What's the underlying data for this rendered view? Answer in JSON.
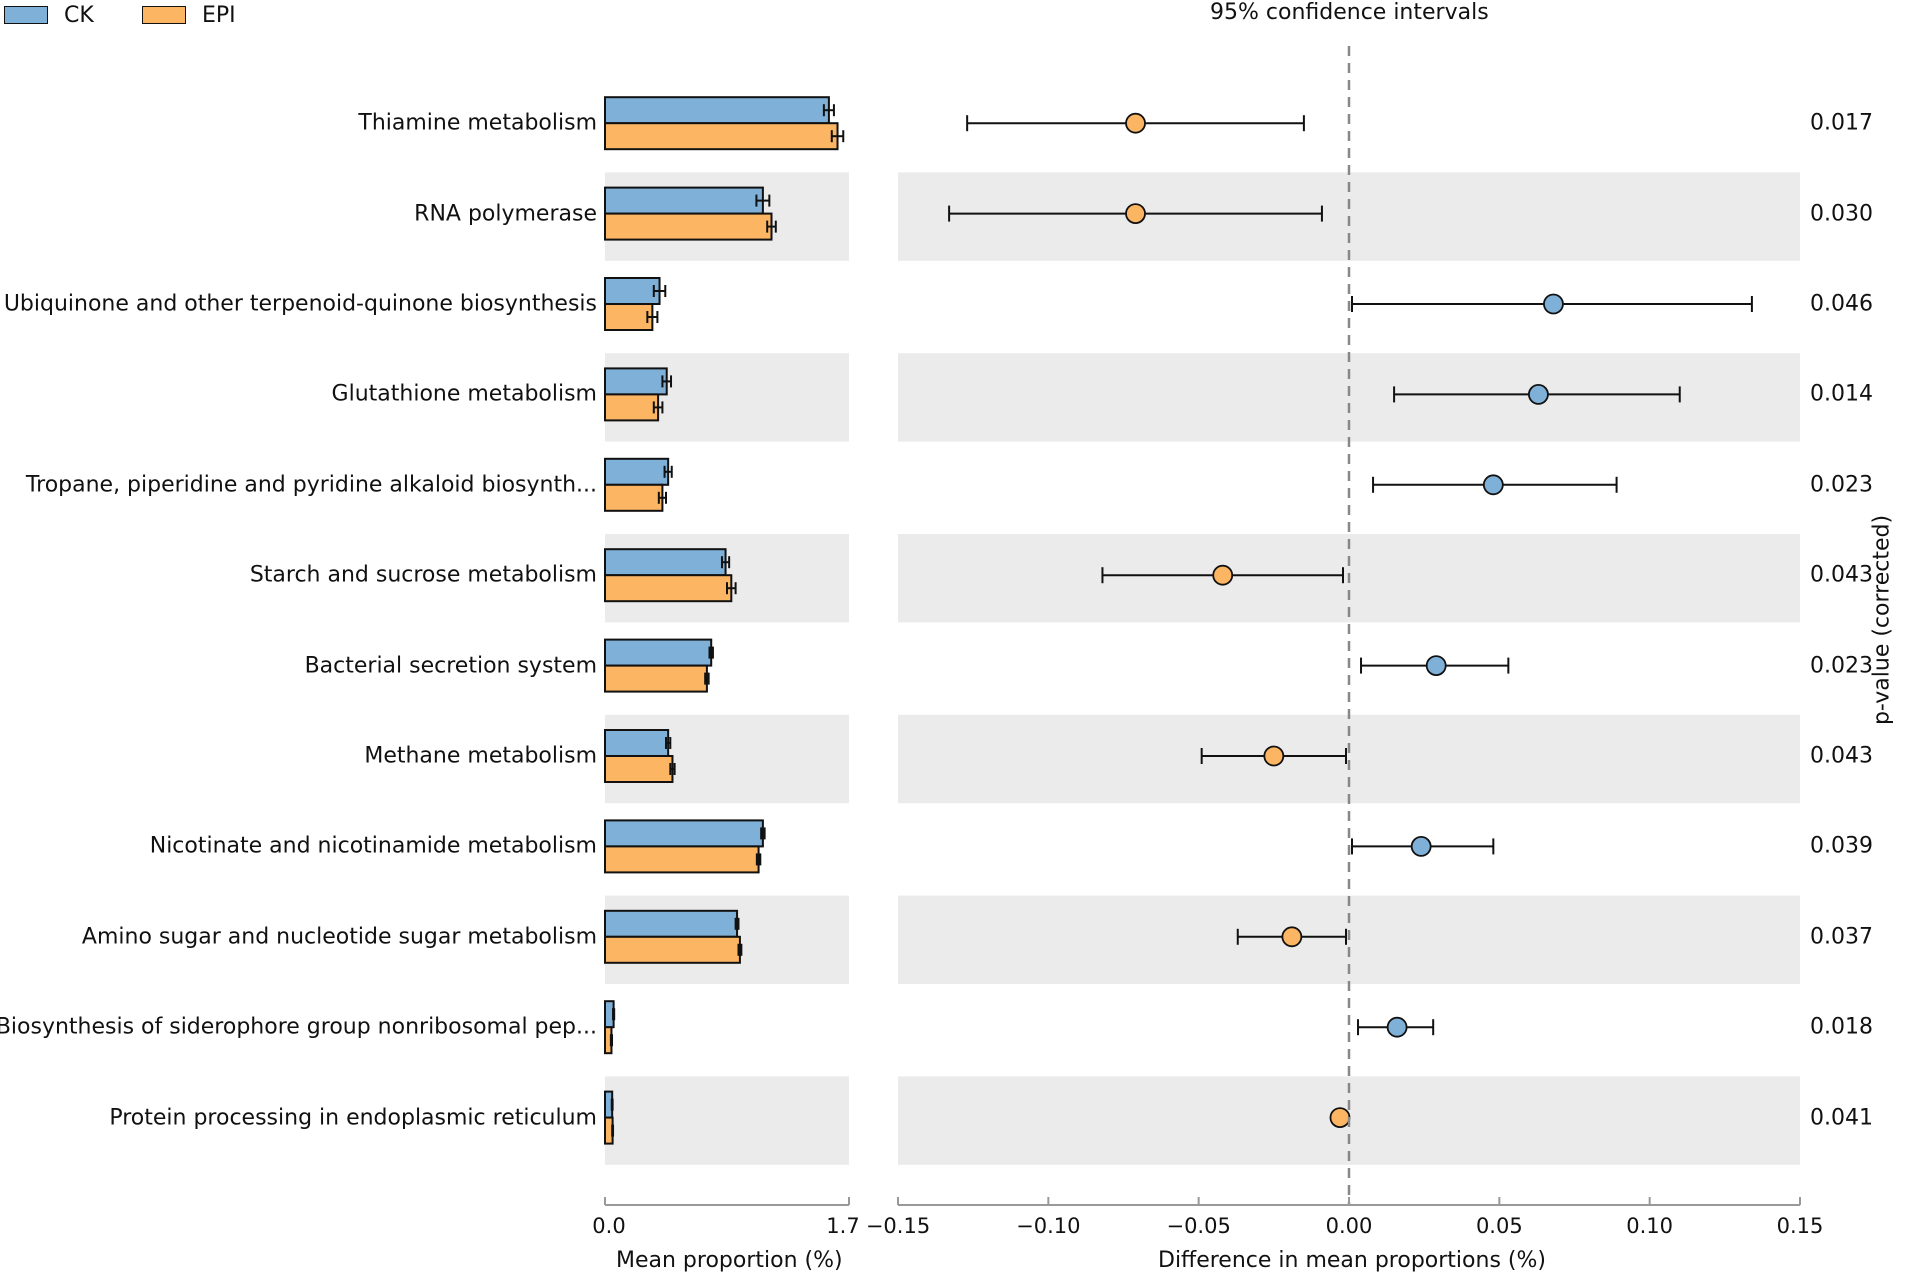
{
  "chart_data": {
    "type": "extended-error-bar",
    "title": "95% confidence intervals",
    "legend": [
      {
        "name": "CK",
        "color": "#7fb0d8"
      },
      {
        "name": "EPI",
        "color": "#fcb563"
      }
    ],
    "left_axis": {
      "label": "Mean proportion (%)",
      "xlim": [
        0.0,
        1.7
      ],
      "ticks": [
        "0.0",
        "1.7"
      ]
    },
    "right_axis": {
      "label": "Difference in mean proportions (%)",
      "xlim": [
        -0.15,
        0.15
      ],
      "ticks": [
        "−0.15",
        "−0.10",
        "−0.05",
        "0.00",
        "0.05",
        "0.10",
        "0.15"
      ]
    },
    "pvalue_label": "p-value (corrected)",
    "categories": [
      {
        "name": "Thiamine metabolism",
        "ck": 1.56,
        "ck_err": 0.035,
        "epi": 1.62,
        "epi_err": 0.04,
        "diff": -0.071,
        "ci": [
          -0.127,
          -0.015
        ],
        "pvalue": "0.017",
        "winner": "EPI"
      },
      {
        "name": "RNA polymerase",
        "ck": 1.1,
        "ck_err": 0.045,
        "epi": 1.16,
        "epi_err": 0.03,
        "diff": -0.071,
        "ci": [
          -0.133,
          -0.009
        ],
        "pvalue": "0.030",
        "winner": "EPI"
      },
      {
        "name": "Ubiquinone and other terpenoid-quinone biosynthesis",
        "ck": 0.38,
        "ck_err": 0.04,
        "epi": 0.33,
        "epi_err": 0.035,
        "diff": 0.068,
        "ci": [
          0.001,
          0.134
        ],
        "pvalue": "0.046",
        "winner": "CK"
      },
      {
        "name": "Glutathione metabolism",
        "ck": 0.43,
        "ck_err": 0.03,
        "epi": 0.37,
        "epi_err": 0.03,
        "diff": 0.063,
        "ci": [
          0.015,
          0.11
        ],
        "pvalue": "0.014",
        "winner": "CK"
      },
      {
        "name": "Tropane, piperidine and pyridine alkaloid biosynth...",
        "ck": 0.44,
        "ck_err": 0.025,
        "epi": 0.4,
        "epi_err": 0.025,
        "diff": 0.048,
        "ci": [
          0.008,
          0.089
        ],
        "pvalue": "0.023",
        "winner": "CK"
      },
      {
        "name": "Starch and sucrose metabolism",
        "ck": 0.84,
        "ck_err": 0.025,
        "epi": 0.88,
        "epi_err": 0.03,
        "diff": -0.042,
        "ci": [
          -0.082,
          -0.002
        ],
        "pvalue": "0.043",
        "winner": "EPI"
      },
      {
        "name": "Bacterial secretion system",
        "ck": 0.74,
        "ck_err": 0.012,
        "epi": 0.71,
        "epi_err": 0.012,
        "diff": 0.029,
        "ci": [
          0.004,
          0.053
        ],
        "pvalue": "0.023",
        "winner": "CK"
      },
      {
        "name": "Methane metabolism",
        "ck": 0.44,
        "ck_err": 0.015,
        "epi": 0.47,
        "epi_err": 0.015,
        "diff": -0.025,
        "ci": [
          -0.049,
          -0.001
        ],
        "pvalue": "0.043",
        "winner": "EPI"
      },
      {
        "name": "Nicotinate and nicotinamide metabolism",
        "ck": 1.1,
        "ck_err": 0.012,
        "epi": 1.07,
        "epi_err": 0.012,
        "diff": 0.024,
        "ci": [
          0.001,
          0.048
        ],
        "pvalue": "0.039",
        "winner": "CK"
      },
      {
        "name": "Amino sugar and nucleotide sugar metabolism",
        "ck": 0.92,
        "ck_err": 0.01,
        "epi": 0.94,
        "epi_err": 0.01,
        "diff": -0.019,
        "ci": [
          -0.037,
          -0.001
        ],
        "pvalue": "0.037",
        "winner": "EPI"
      },
      {
        "name": "Biosynthesis of siderophore group nonribosomal pep...",
        "ck": 0.06,
        "ck_err": 0.004,
        "epi": 0.045,
        "epi_err": 0.004,
        "diff": 0.016,
        "ci": [
          0.003,
          0.028
        ],
        "pvalue": "0.018",
        "winner": "CK"
      },
      {
        "name": "Protein processing in endoplasmic reticulum",
        "ck": 0.05,
        "ck_err": 0.003,
        "epi": 0.053,
        "epi_err": 0.003,
        "diff": -0.003,
        "ci": [
          -0.004,
          -0.002
        ],
        "pvalue": "0.041",
        "winner": "EPI"
      }
    ]
  }
}
